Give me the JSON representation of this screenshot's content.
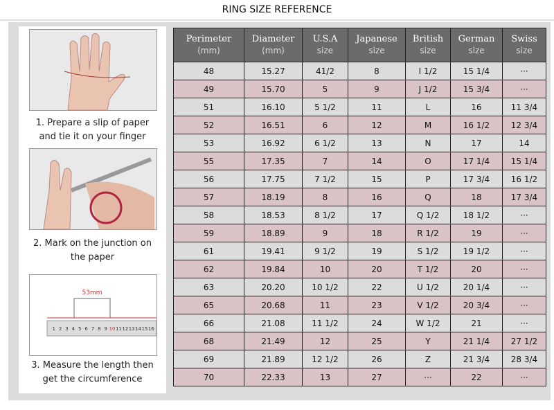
{
  "header": {
    "title": "RING SIZE REFERENCE"
  },
  "steps": [
    {
      "caption": [
        "1. Prepare a slip of paper",
        "and tie it on your finger"
      ]
    },
    {
      "caption": [
        "2. Mark on the junction on",
        "the paper"
      ]
    },
    {
      "caption": [
        "3. Measure the length then",
        "get the circumference"
      ],
      "measure_label": "53mm",
      "ruler_labels": [
        "1",
        "2",
        "3",
        "4",
        "5",
        "6",
        "7",
        "8",
        "9",
        "10",
        "11",
        "12",
        "13",
        "14",
        "15",
        "16"
      ]
    }
  ],
  "table": {
    "columns": [
      [
        "Perimeter",
        "(mm)"
      ],
      [
        "Diameter",
        "(mm)"
      ],
      [
        "U.S.A",
        "size"
      ],
      [
        "Japanese",
        "size"
      ],
      [
        "British",
        "size"
      ],
      [
        "German",
        "size"
      ],
      [
        "Swiss",
        "size"
      ]
    ],
    "rows": [
      [
        "48",
        "15.27",
        "41/2",
        "8",
        "I 1/2",
        "15 1/4",
        "···"
      ],
      [
        "49",
        "15.70",
        "5",
        "9",
        "J 1/2",
        "15 3/4",
        "···"
      ],
      [
        "51",
        "16.10",
        "5 1/2",
        "11",
        "L",
        "16",
        "11 3/4"
      ],
      [
        "52",
        "16.51",
        "6",
        "12",
        "M",
        "16 1/2",
        "12 3/4"
      ],
      [
        "53",
        "16.92",
        "6 1/2",
        "13",
        "N",
        "17",
        "14"
      ],
      [
        "55",
        "17.35",
        "7",
        "14",
        "O",
        "17 1/4",
        "15 1/4"
      ],
      [
        "56",
        "17.75",
        "7 1/2",
        "15",
        "P",
        "17 3/4",
        "16 1/2"
      ],
      [
        "57",
        "18.19",
        "8",
        "16",
        "Q",
        "18",
        "17 3/4"
      ],
      [
        "58",
        "18.53",
        "8 1/2",
        "17",
        "Q  1/2",
        "18 1/2",
        "···"
      ],
      [
        "59",
        "18.89",
        "9",
        "18",
        "R 1/2",
        "19",
        "···"
      ],
      [
        "61",
        "19.41",
        "9 1/2",
        "19",
        "S 1/2",
        "19 1/2",
        "···"
      ],
      [
        "62",
        "19.84",
        "10",
        "20",
        "T 1/2",
        "20",
        "···"
      ],
      [
        "63",
        "20.20",
        "10 1/2",
        "22",
        "U 1/2",
        "20 1/4",
        "···"
      ],
      [
        "65",
        "20.68",
        "11",
        "23",
        "V 1/2",
        "20 3/4",
        "···"
      ],
      [
        "66",
        "21.08",
        "11 1/2",
        "24",
        "W 1/2",
        "21",
        "···"
      ],
      [
        "68",
        "21.49",
        "12",
        "25",
        "Y",
        "21 1/4",
        "27 1/2"
      ],
      [
        "69",
        "21.89",
        "12 1/2",
        "26",
        "Z",
        "21 3/4",
        "28 3/4"
      ],
      [
        "70",
        "22.33",
        "13",
        "27",
        "···",
        "22",
        "···"
      ]
    ]
  }
}
